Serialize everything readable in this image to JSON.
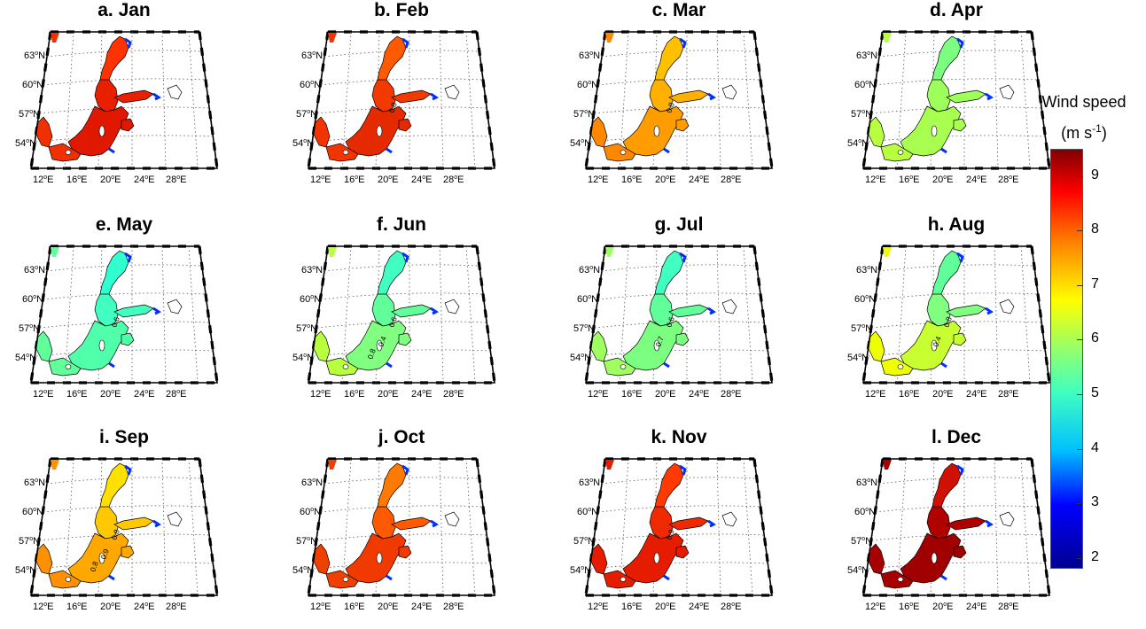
{
  "panels": [
    {
      "title": "a. Jan",
      "colors": {
        "north": "#ff3300",
        "bothnia": "#e82000",
        "main": "#e01800",
        "south": "#f03000"
      },
      "labels": []
    },
    {
      "title": "b. Feb",
      "colors": {
        "north": "#ff5a00",
        "bothnia": "#f23a00",
        "main": "#e52a00",
        "south": "#f23500"
      },
      "labels": [
        "0.8"
      ]
    },
    {
      "title": "c. Mar",
      "colors": {
        "north": "#ffc000",
        "bothnia": "#ffb000",
        "main": "#ff9c00",
        "south": "#ff8800"
      },
      "labels": [
        "0.8"
      ]
    },
    {
      "title": "d. Apr",
      "colors": {
        "north": "#7cff80",
        "bothnia": "#9cff5a",
        "main": "#a8ff50",
        "south": "#b8ff40"
      },
      "labels": []
    },
    {
      "title": "e. May",
      "colors": {
        "north": "#30ffd0",
        "bothnia": "#40ffc0",
        "main": "#50ffaa",
        "south": "#60ff9a"
      },
      "labels": [
        "0.6"
      ]
    },
    {
      "title": "f. Jun",
      "colors": {
        "north": "#40ffc0",
        "bothnia": "#60ff9a",
        "main": "#80ff80",
        "south": "#b8ff40"
      },
      "labels": [
        "0.6",
        "0.4",
        "0.8"
      ]
    },
    {
      "title": "g. Jul",
      "colors": {
        "north": "#40ffc0",
        "bothnia": "#60ff9a",
        "main": "#7cff80",
        "south": "#a0ff60"
      },
      "labels": [
        "0.6",
        "0.7"
      ]
    },
    {
      "title": "h. Aug",
      "colors": {
        "north": "#60ff9a",
        "bothnia": "#80ff80",
        "main": "#c8ff30",
        "south": "#f0ff00"
      },
      "labels": [
        "0.8",
        "0.4"
      ]
    },
    {
      "title": "i. Sep",
      "colors": {
        "north": "#ffe000",
        "bothnia": "#ffc800",
        "main": "#ffa800",
        "south": "#ff9000"
      },
      "labels": [
        "0.8",
        "0.9",
        "0.8"
      ]
    },
    {
      "title": "j. Oct",
      "colors": {
        "north": "#ff7a00",
        "bothnia": "#ff5a00",
        "main": "#f03a00",
        "south": "#f04000"
      },
      "labels": []
    },
    {
      "title": "k. Nov",
      "colors": {
        "north": "#ff3a00",
        "bothnia": "#f02a00",
        "main": "#e61c00",
        "south": "#e61c00"
      },
      "labels": [
        "0.9"
      ]
    },
    {
      "title": "l. Dec",
      "colors": {
        "north": "#d01000",
        "bothnia": "#b00000",
        "main": "#a00000",
        "south": "#a80000"
      },
      "labels": []
    }
  ],
  "map_labels": {
    "lat": [
      "63",
      "60",
      "57",
      "54"
    ],
    "lat_suffix": "N",
    "lon": [
      "12",
      "16",
      "20",
      "24",
      "28"
    ],
    "lon_suffix": "E",
    "degree": "o"
  },
  "colorbar": {
    "title_line1": "Wind speed",
    "title_line2_prefix": "(m s",
    "title_line2_sup": "-1",
    "title_line2_suffix": ")",
    "range": [
      1.8,
      9.5
    ],
    "ticks": [
      "9",
      "8",
      "7",
      "6",
      "5",
      "4",
      "3",
      "2"
    ],
    "tick_values": [
      9,
      8,
      7,
      6,
      5,
      4,
      3,
      2
    ],
    "colormap": "jet"
  }
}
